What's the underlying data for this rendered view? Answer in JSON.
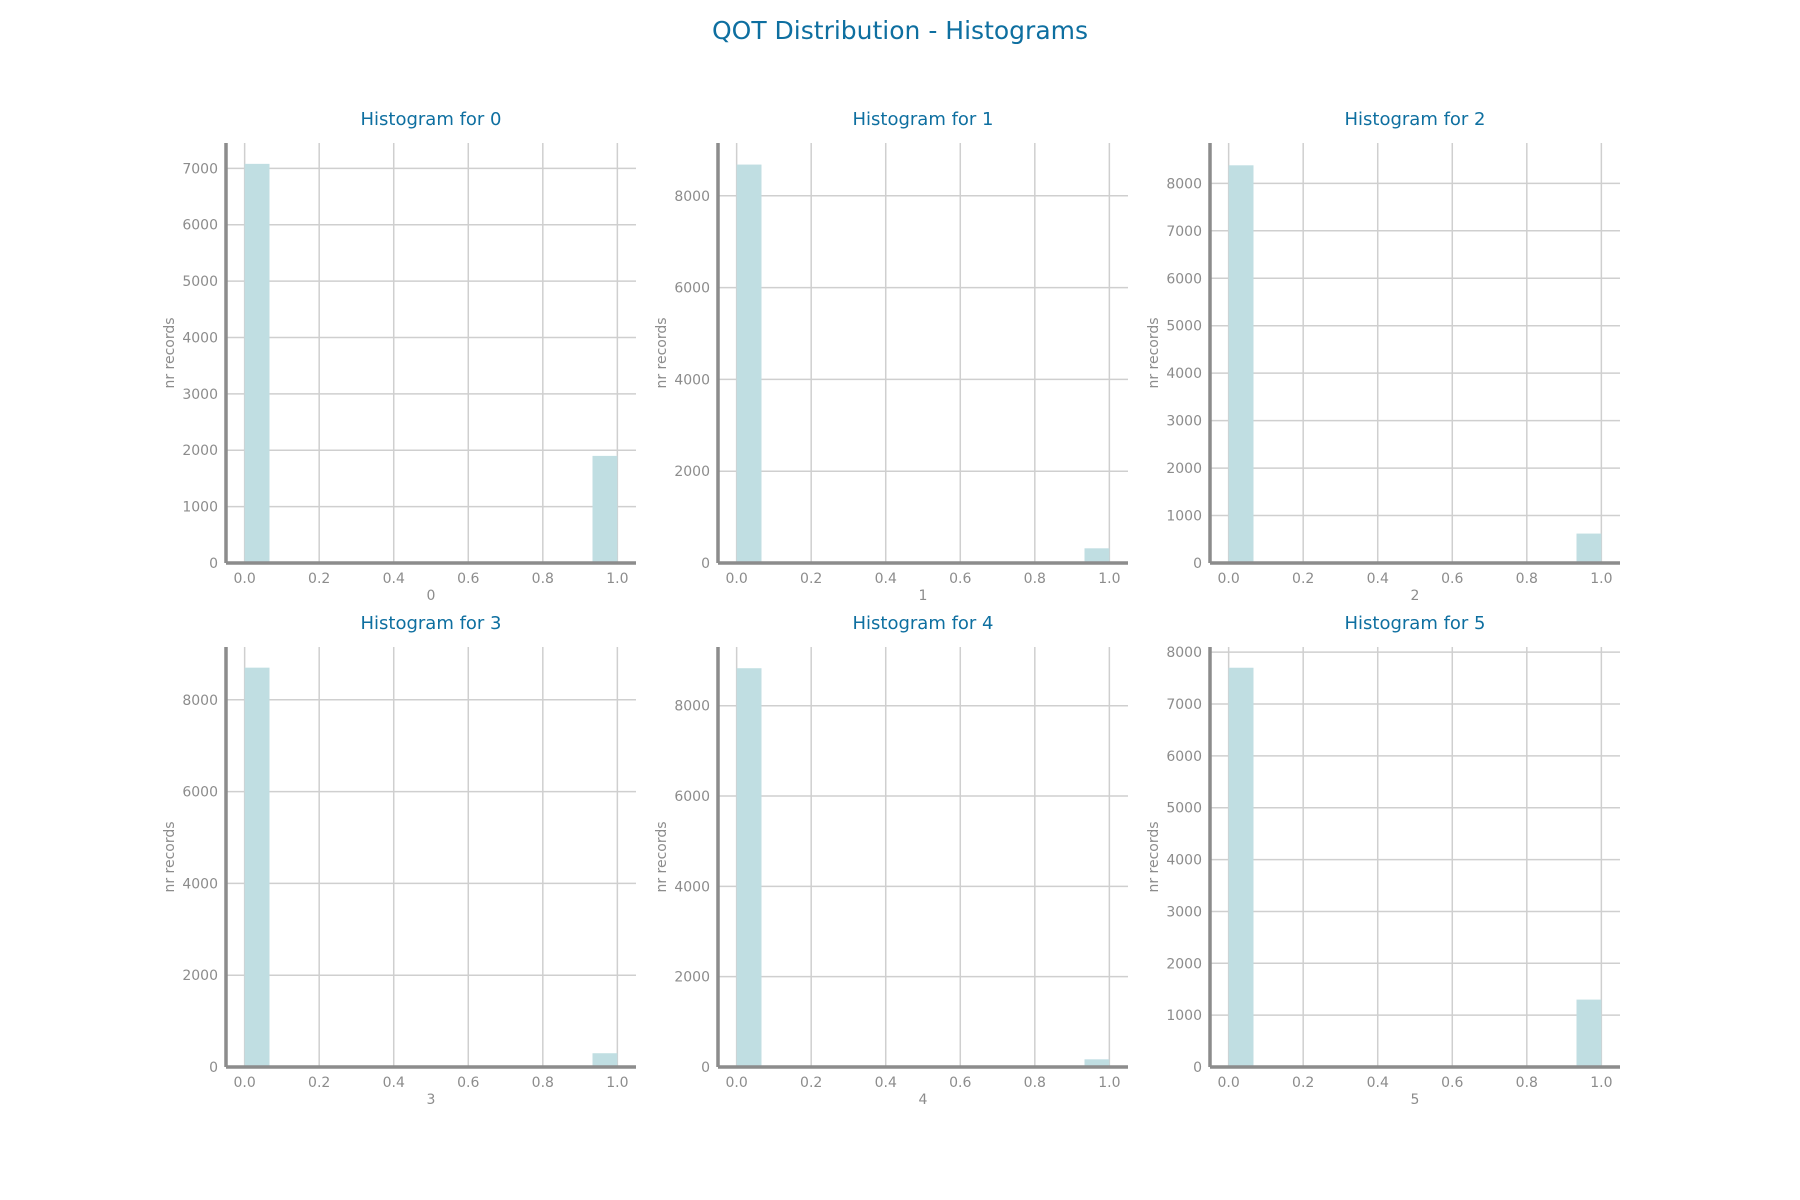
{
  "title": "QOT Distribution - Histograms",
  "colors": {
    "title": "#0e6fa0",
    "bar": "#c0dee2",
    "grid": "#cfcfcf",
    "axis": "#8c8c8c",
    "text": "#8c8c8c"
  },
  "chart_data": [
    {
      "type": "bar",
      "title": "Histogram for 0",
      "xlabel": "0",
      "ylabel": "nr records",
      "xlim": [
        -0.05,
        1.05
      ],
      "ylim": [
        0,
        7450
      ],
      "xticks": [
        "0.0",
        "0.2",
        "0.4",
        "0.6",
        "0.8",
        "1.0"
      ],
      "yticks": [
        "0",
        "1000",
        "2000",
        "3000",
        "4000",
        "5000",
        "6000",
        "7000"
      ],
      "bins": [
        {
          "x0": 0.0,
          "x1": 0.0667,
          "value": 7080
        },
        {
          "x0": 0.9333,
          "x1": 1.0,
          "value": 1900
        }
      ],
      "grid": true
    },
    {
      "type": "bar",
      "title": "Histogram for 1",
      "xlabel": "1",
      "ylabel": "nr records",
      "xlim": [
        -0.05,
        1.05
      ],
      "ylim": [
        0,
        9150
      ],
      "xticks": [
        "0.0",
        "0.2",
        "0.4",
        "0.6",
        "0.8",
        "1.0"
      ],
      "yticks": [
        "0",
        "2000",
        "4000",
        "6000",
        "8000"
      ],
      "bins": [
        {
          "x0": 0.0,
          "x1": 0.0667,
          "value": 8680
        },
        {
          "x0": 0.9333,
          "x1": 1.0,
          "value": 320
        }
      ],
      "grid": true
    },
    {
      "type": "bar",
      "title": "Histogram for 2",
      "xlabel": "2",
      "ylabel": "nr records",
      "xlim": [
        -0.05,
        1.05
      ],
      "ylim": [
        0,
        8850
      ],
      "xticks": [
        "0.0",
        "0.2",
        "0.4",
        "0.6",
        "0.8",
        "1.0"
      ],
      "yticks": [
        "0",
        "1000",
        "2000",
        "3000",
        "4000",
        "5000",
        "6000",
        "7000",
        "8000"
      ],
      "bins": [
        {
          "x0": 0.0,
          "x1": 0.0667,
          "value": 8380
        },
        {
          "x0": 0.9333,
          "x1": 1.0,
          "value": 620
        }
      ],
      "grid": true
    },
    {
      "type": "bar",
      "title": "Histogram for 3",
      "xlabel": "3",
      "ylabel": "nr records",
      "xlim": [
        -0.05,
        1.05
      ],
      "ylim": [
        0,
        9150
      ],
      "xticks": [
        "0.0",
        "0.2",
        "0.4",
        "0.6",
        "0.8",
        "1.0"
      ],
      "yticks": [
        "0",
        "2000",
        "4000",
        "6000",
        "8000"
      ],
      "bins": [
        {
          "x0": 0.0,
          "x1": 0.0667,
          "value": 8700
        },
        {
          "x0": 0.9333,
          "x1": 1.0,
          "value": 300
        }
      ],
      "grid": true
    },
    {
      "type": "bar",
      "title": "Histogram for 4",
      "xlabel": "4",
      "ylabel": "nr records",
      "xlim": [
        -0.05,
        1.05
      ],
      "ylim": [
        0,
        9300
      ],
      "xticks": [
        "0.0",
        "0.2",
        "0.4",
        "0.6",
        "0.8",
        "1.0"
      ],
      "yticks": [
        "0",
        "2000",
        "4000",
        "6000",
        "8000"
      ],
      "bins": [
        {
          "x0": 0.0,
          "x1": 0.0667,
          "value": 8830
        },
        {
          "x0": 0.9333,
          "x1": 1.0,
          "value": 170
        }
      ],
      "grid": true
    },
    {
      "type": "bar",
      "title": "Histogram for 5",
      "xlabel": "5",
      "ylabel": "nr records",
      "xlim": [
        -0.05,
        1.05
      ],
      "ylim": [
        0,
        8100
      ],
      "xticks": [
        "0.0",
        "0.2",
        "0.4",
        "0.6",
        "0.8",
        "1.0"
      ],
      "yticks": [
        "0",
        "1000",
        "2000",
        "3000",
        "4000",
        "5000",
        "6000",
        "7000",
        "8000"
      ],
      "bins": [
        {
          "x0": 0.0,
          "x1": 0.0667,
          "value": 7700
        },
        {
          "x0": 0.9333,
          "x1": 1.0,
          "value": 1300
        }
      ],
      "grid": true
    }
  ]
}
